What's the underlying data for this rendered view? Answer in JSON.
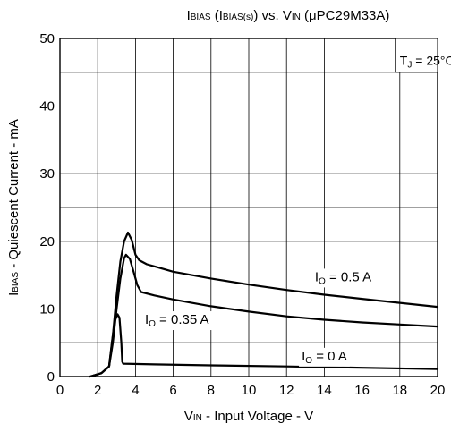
{
  "chart_data": {
    "type": "line",
    "title": {
      "p1": "I",
      "p1s": "BIAS",
      "p2": " (I",
      "p2s": "BIAS(s)",
      "p3": ") vs. V",
      "p3s": "IN",
      "p4": " (μPC29M33A)"
    },
    "xlabel": {
      "main": "V",
      "sub": "IN",
      "rest": " - Input Voltage - V"
    },
    "ylabel": {
      "main": "I",
      "sub": "BIAS",
      "rest": " - Quiescent Current - mA"
    },
    "xlim": [
      0,
      20
    ],
    "ylim": [
      0,
      50
    ],
    "x_ticks": [
      "0",
      "2",
      "4",
      "6",
      "8",
      "10",
      "12",
      "14",
      "16",
      "18",
      "20"
    ],
    "y_ticks": [
      "0",
      "10",
      "20",
      "30",
      "40",
      "50"
    ],
    "grid": true,
    "condition": {
      "main": "T",
      "sub": "J",
      "rest": " = 25°C"
    },
    "series": [
      {
        "name": "IO = 0.5 A",
        "label": {
          "main": "I",
          "sub": "O",
          "rest": " = 0.5 A"
        },
        "x": [
          1.6,
          2.2,
          2.6,
          2.8,
          3.0,
          3.2,
          3.4,
          3.6,
          3.8,
          4.0,
          4.2,
          4.6,
          5,
          6,
          8,
          10,
          12,
          14,
          16,
          18,
          20
        ],
        "y": [
          0,
          0.5,
          1.5,
          6,
          12,
          17,
          20,
          21.3,
          20.2,
          18,
          17.2,
          16.6,
          16.3,
          15.5,
          14.5,
          13.6,
          12.8,
          12.1,
          11.5,
          10.9,
          10.3
        ]
      },
      {
        "name": "IO = 0.35 A",
        "label": {
          "main": "I",
          "sub": "O",
          "rest": " = 0.35 A"
        },
        "x": [
          1.6,
          2.2,
          2.6,
          2.8,
          3.0,
          3.2,
          3.4,
          3.5,
          3.7,
          3.9,
          4.1,
          4.3,
          5,
          6,
          8,
          10,
          12,
          14,
          16,
          18,
          20
        ],
        "y": [
          0,
          0.5,
          1.5,
          5,
          10,
          14.5,
          17.5,
          18,
          17.4,
          15.5,
          13.5,
          12.5,
          12,
          11.4,
          10.4,
          9.6,
          8.9,
          8.4,
          8.0,
          7.7,
          7.4
        ]
      },
      {
        "name": "IO = 0 A",
        "label": {
          "main": "I",
          "sub": "O",
          "rest": " = 0 A"
        },
        "x": [
          1.6,
          2.2,
          2.6,
          2.75,
          2.9,
          3.05,
          3.15,
          3.25,
          3.3,
          3.35,
          5,
          8,
          12,
          16,
          20
        ],
        "y": [
          0,
          0.5,
          1.5,
          5,
          8.2,
          9.2,
          8.7,
          5,
          2.2,
          1.9,
          1.8,
          1.65,
          1.5,
          1.3,
          1.1
        ]
      }
    ]
  }
}
